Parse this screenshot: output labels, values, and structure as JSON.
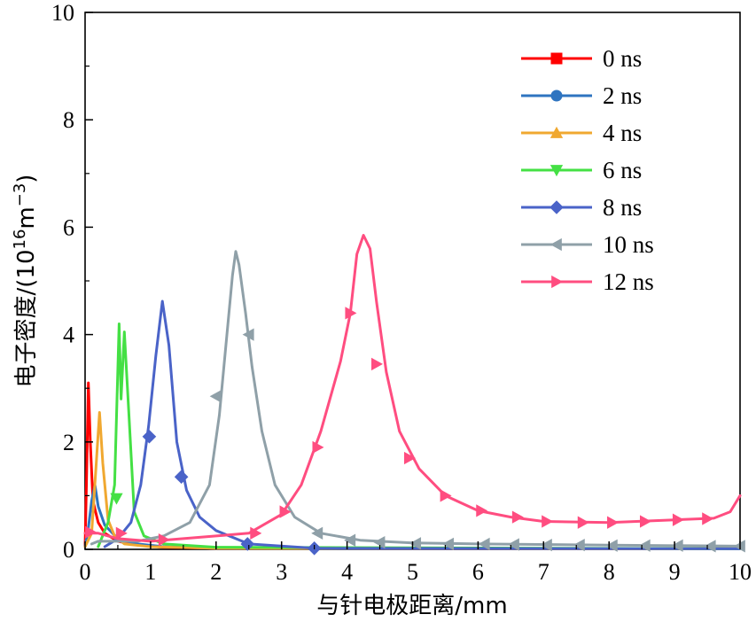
{
  "chart_data": {
    "type": "line",
    "xlabel": "与针电极距离/mm",
    "ylabel": {
      "prefix": "电子密度/(10",
      "exp1": "16",
      "mid": "m",
      "exp2": "−3",
      "suffix": ")"
    },
    "xlim": [
      0,
      10
    ],
    "ylim": [
      0,
      10
    ],
    "x_ticks": [
      "0",
      "1",
      "2",
      "3",
      "4",
      "5",
      "6",
      "7",
      "8",
      "9",
      "10"
    ],
    "y_ticks": [
      "0",
      "2",
      "4",
      "6",
      "8",
      "10"
    ],
    "grid": false,
    "legend_position": "top-right",
    "series": [
      {
        "name": "0 ns",
        "color": "#ff0000",
        "marker": "square",
        "points": [
          [
            0,
            0.05
          ],
          [
            0.02,
            1.2
          ],
          [
            0.05,
            3.1
          ],
          [
            0.08,
            2.0
          ],
          [
            0.12,
            0.9
          ],
          [
            0.2,
            0.5
          ],
          [
            0.3,
            0.3
          ],
          [
            0.5,
            0.15
          ],
          [
            0.8,
            0.08
          ],
          [
            1.2,
            0.04
          ],
          [
            2,
            0.02
          ],
          [
            10,
            0.01
          ]
        ],
        "markers": []
      },
      {
        "name": "2 ns",
        "color": "#2e74c0",
        "marker": "circle",
        "points": [
          [
            0,
            0.05
          ],
          [
            0.05,
            0.4
          ],
          [
            0.1,
            0.9
          ],
          [
            0.15,
            1.2
          ],
          [
            0.2,
            0.8
          ],
          [
            0.3,
            0.45
          ],
          [
            0.5,
            0.2
          ],
          [
            0.8,
            0.1
          ],
          [
            1.2,
            0.05
          ],
          [
            2,
            0.02
          ],
          [
            10,
            0.01
          ]
        ],
        "markers": []
      },
      {
        "name": "4 ns",
        "color": "#f0a830",
        "marker": "triangle-up",
        "points": [
          [
            0,
            0.05
          ],
          [
            0.1,
            0.3
          ],
          [
            0.17,
            1.6
          ],
          [
            0.22,
            2.55
          ],
          [
            0.27,
            1.6
          ],
          [
            0.35,
            0.55
          ],
          [
            0.45,
            0.25
          ],
          [
            0.6,
            0.1
          ],
          [
            1,
            0.05
          ],
          [
            2,
            0.02
          ],
          [
            10,
            0.01
          ]
        ],
        "markers": []
      },
      {
        "name": "6 ns",
        "color": "#44e044",
        "marker": "triangle-down",
        "points": [
          [
            0.2,
            0.05
          ],
          [
            0.35,
            0.5
          ],
          [
            0.45,
            1.2
          ],
          [
            0.52,
            4.2
          ],
          [
            0.55,
            2.8
          ],
          [
            0.6,
            4.05
          ],
          [
            0.67,
            2.5
          ],
          [
            0.75,
            0.7
          ],
          [
            0.9,
            0.25
          ],
          [
            1.2,
            0.1
          ],
          [
            2,
            0.04
          ],
          [
            10,
            0.01
          ]
        ],
        "markers": [
          [
            0.48,
            0.95
          ]
        ]
      },
      {
        "name": "8 ns",
        "color": "#4a63c8",
        "marker": "diamond",
        "points": [
          [
            0.3,
            0.05
          ],
          [
            0.5,
            0.2
          ],
          [
            0.7,
            0.5
          ],
          [
            0.85,
            1.2
          ],
          [
            0.97,
            2.3
          ],
          [
            1.08,
            3.6
          ],
          [
            1.18,
            4.62
          ],
          [
            1.28,
            3.8
          ],
          [
            1.4,
            2.0
          ],
          [
            1.55,
            1.1
          ],
          [
            1.75,
            0.6
          ],
          [
            2.0,
            0.35
          ],
          [
            2.5,
            0.1
          ],
          [
            3.5,
            0.02
          ],
          [
            10,
            0.01
          ]
        ],
        "markers": [
          [
            0.98,
            2.1
          ],
          [
            1.47,
            1.35
          ],
          [
            2.48,
            0.1
          ],
          [
            3.5,
            0.02
          ]
        ]
      },
      {
        "name": "10 ns",
        "color": "#8fa0a8",
        "marker": "triangle-left",
        "points": [
          [
            0.1,
            0.1
          ],
          [
            0.2,
            0.15
          ],
          [
            0.8,
            0.15
          ],
          [
            1.2,
            0.25
          ],
          [
            1.6,
            0.5
          ],
          [
            1.9,
            1.2
          ],
          [
            2.05,
            2.5
          ],
          [
            2.15,
            3.8
          ],
          [
            2.25,
            5.1
          ],
          [
            2.3,
            5.55
          ],
          [
            2.35,
            5.3
          ],
          [
            2.45,
            4.4
          ],
          [
            2.55,
            3.4
          ],
          [
            2.7,
            2.2
          ],
          [
            2.9,
            1.2
          ],
          [
            3.2,
            0.6
          ],
          [
            3.6,
            0.3
          ],
          [
            4.2,
            0.17
          ],
          [
            5,
            0.12
          ],
          [
            6,
            0.1
          ],
          [
            8,
            0.08
          ],
          [
            10,
            0.06
          ]
        ],
        "markers": [
          [
            2.0,
            2.85
          ],
          [
            2.5,
            4.0
          ],
          [
            3.55,
            0.3
          ],
          [
            4.05,
            0.17
          ],
          [
            4.5,
            0.13
          ],
          [
            5.05,
            0.11
          ],
          [
            5.55,
            0.1
          ],
          [
            6.1,
            0.1
          ],
          [
            6.55,
            0.09
          ],
          [
            7.05,
            0.08
          ],
          [
            7.55,
            0.08
          ],
          [
            8.05,
            0.07
          ],
          [
            8.55,
            0.07
          ],
          [
            9.05,
            0.07
          ],
          [
            9.55,
            0.06
          ],
          [
            10.0,
            0.06
          ]
        ]
      },
      {
        "name": "12 ns",
        "color": "#ff4d80",
        "marker": "triangle-right",
        "points": [
          [
            0,
            0.3
          ],
          [
            0.2,
            0.3
          ],
          [
            0.5,
            0.2
          ],
          [
            1.0,
            0.15
          ],
          [
            1.5,
            0.2
          ],
          [
            2.0,
            0.25
          ],
          [
            2.5,
            0.3
          ],
          [
            3.0,
            0.65
          ],
          [
            3.3,
            1.2
          ],
          [
            3.6,
            2.2
          ],
          [
            3.9,
            3.5
          ],
          [
            4.05,
            4.4
          ],
          [
            4.15,
            5.5
          ],
          [
            4.25,
            5.85
          ],
          [
            4.35,
            5.6
          ],
          [
            4.45,
            4.6
          ],
          [
            4.6,
            3.3
          ],
          [
            4.8,
            2.2
          ],
          [
            5.1,
            1.5
          ],
          [
            5.5,
            1.0
          ],
          [
            6,
            0.72
          ],
          [
            6.5,
            0.6
          ],
          [
            7,
            0.52
          ],
          [
            8,
            0.5
          ],
          [
            9,
            0.55
          ],
          [
            9.6,
            0.58
          ],
          [
            9.85,
            0.7
          ],
          [
            10,
            1.0
          ]
        ],
        "markers": [
          [
            0.08,
            0.32
          ],
          [
            0.55,
            0.3
          ],
          [
            1.2,
            0.18
          ],
          [
            2.6,
            0.3
          ],
          [
            3.05,
            0.7
          ],
          [
            3.55,
            1.9
          ],
          [
            4.05,
            4.4
          ],
          [
            4.45,
            3.45
          ],
          [
            4.95,
            1.7
          ],
          [
            5.5,
            1.0
          ],
          [
            6.05,
            0.72
          ],
          [
            6.6,
            0.6
          ],
          [
            7.05,
            0.52
          ],
          [
            7.6,
            0.5
          ],
          [
            8.05,
            0.5
          ],
          [
            8.55,
            0.52
          ],
          [
            9.05,
            0.55
          ],
          [
            9.5,
            0.57
          ]
        ]
      }
    ]
  }
}
